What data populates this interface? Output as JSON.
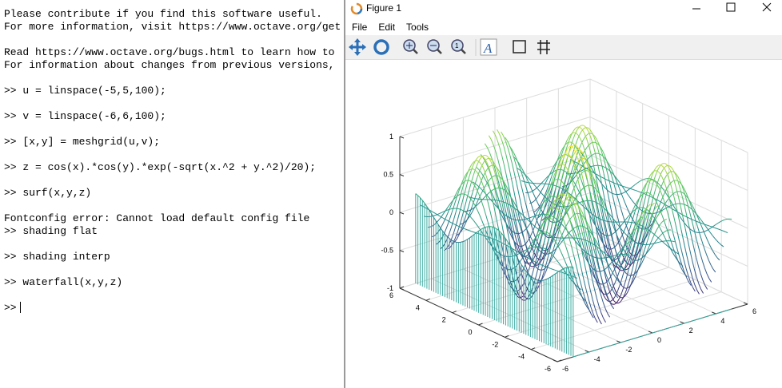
{
  "terminal": {
    "blocks": [
      [
        "Please contribute if you find this software useful.",
        "For more information, visit https://www.octave.org/get"
      ],
      [
        "Read https://www.octave.org/bugs.html to learn how to",
        "For information about changes from previous versions,"
      ],
      [
        ">> u = linspace(-5,5,100);"
      ],
      [
        ">> v = linspace(-6,6,100);"
      ],
      [
        ">> [x,y] = meshgrid(u,v);"
      ],
      [
        ">> z = cos(x).*cos(y).*exp(-sqrt(x.^2 + y.^2)/20);"
      ],
      [
        ">> surf(x,y,z)"
      ],
      [
        "Fontconfig error: Cannot load default config file",
        ">> shading flat"
      ],
      [
        ">> shading interp"
      ],
      [
        ">> waterfall(x,y,z)"
      ],
      [
        ">>"
      ]
    ]
  },
  "figure": {
    "title": "Figure 1",
    "menu": [
      "File",
      "Edit",
      "Tools"
    ],
    "axes": {
      "zticks": [
        1,
        0.5,
        0,
        -0.5,
        -1
      ],
      "yticks": [
        6,
        4,
        2,
        0,
        -2,
        -4,
        -6
      ],
      "xticks": [
        -6,
        -4,
        -2,
        0,
        2,
        4,
        6
      ]
    }
  }
}
